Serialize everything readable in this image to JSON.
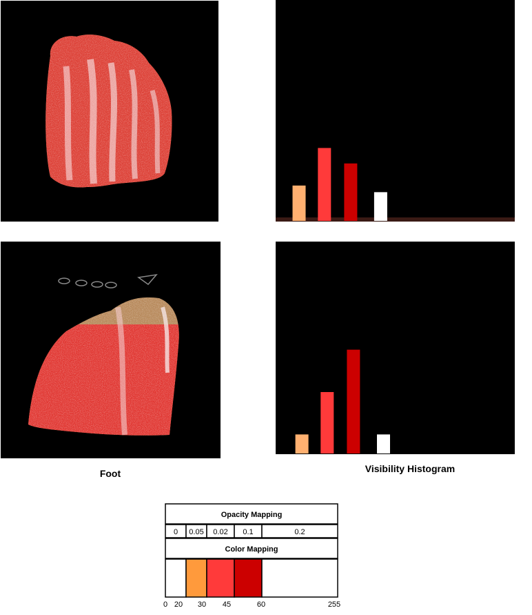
{
  "captions": {
    "left": "Foot",
    "right": "Visibility Histogram"
  },
  "colors": {
    "peach": "#ffb070",
    "orange": "#ff9a3c",
    "red": "#ff3a3a",
    "dark_red": "#cc0000",
    "white": "#ffffff",
    "background": "#000000"
  },
  "chart_data": [
    {
      "type": "bar",
      "panel": "top",
      "xlim": [
        0,
        255
      ],
      "ylim": [
        0,
        1
      ],
      "bars": [
        {
          "x": 25,
          "value": 0.16,
          "color": "#ffb070"
        },
        {
          "x": 52,
          "value": 0.33,
          "color": "#ff3a3a"
        },
        {
          "x": 80,
          "value": 0.26,
          "color": "#cc0000"
        },
        {
          "x": 112,
          "value": 0.13,
          "color": "#ffffff"
        }
      ]
    },
    {
      "type": "bar",
      "panel": "bottom",
      "xlim": [
        0,
        255
      ],
      "ylim": [
        0,
        1
      ],
      "bars": [
        {
          "x": 28,
          "value": 0.09,
          "color": "#ffb070"
        },
        {
          "x": 55,
          "value": 0.29,
          "color": "#ff3a3a"
        },
        {
          "x": 83,
          "value": 0.49,
          "color": "#cc0000"
        },
        {
          "x": 115,
          "value": 0.09,
          "color": "#ffffff"
        }
      ]
    },
    {
      "type": "table",
      "name": "transfer-function",
      "opacity_title": "Opacity Mapping",
      "color_title": "Color Mapping",
      "segments": [
        {
          "start": 0,
          "end": 20,
          "opacity": "0",
          "color": "#ffffff"
        },
        {
          "start": 20,
          "end": 30,
          "opacity": "0.05",
          "color": "#ff9a3c"
        },
        {
          "start": 30,
          "end": 45,
          "opacity": "0.02",
          "color": "#ff3a3a"
        },
        {
          "start": 45,
          "end": 60,
          "opacity": "0.1",
          "color": "#cc0000"
        },
        {
          "start": 60,
          "end": 255,
          "opacity": "0.2",
          "color": "#ffffff"
        }
      ],
      "ticks": [
        "0",
        "20",
        "30",
        "45",
        "60",
        "255"
      ]
    }
  ]
}
